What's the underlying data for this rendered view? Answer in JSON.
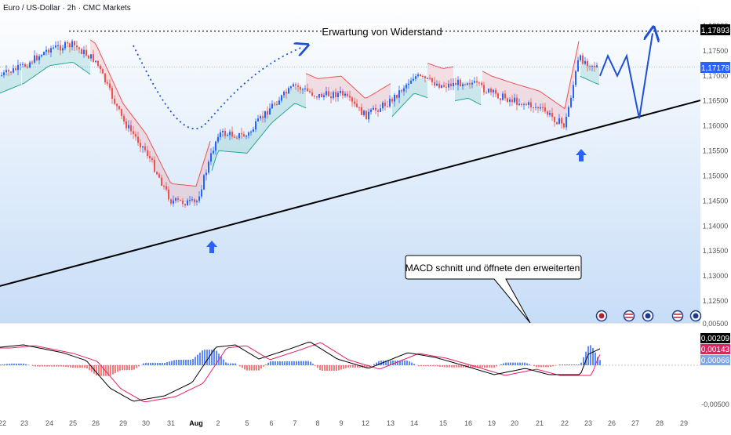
{
  "header": {
    "symbol_title": "Euro / US-Dollar · 2h · CMC Markets"
  },
  "annotations": {
    "resistance_label": "Erwartung von Widerstand",
    "macd_callout": "MACD schnitt und öffnete den erweiterten"
  },
  "colors": {
    "bull": "#2962ff",
    "bear": "#ef5350",
    "supertrend_up": "#26a69a",
    "supertrend_down": "#ef5350",
    "trendline": "#000000",
    "forecast": "#1e4fd8",
    "price_badge": "#2962ff",
    "background_top": "#ffffff",
    "background_bottom": "#c7ddf7"
  },
  "chart_data": [
    {
      "type": "candlestick",
      "title": "Euro / US-Dollar · 2h · CMC Markets",
      "price_axis": {
        "ticks": [
          "1,18000",
          "1,17500",
          "1,17000",
          "1,16500",
          "1,16000",
          "1,15500",
          "1,15000",
          "1,14500",
          "1,14000",
          "1,13500",
          "1,13000",
          "1,12500"
        ],
        "range": [
          1.121,
          1.1805
        ]
      },
      "time_axis": {
        "ticks": [
          "22",
          "23",
          "24",
          "25",
          "26",
          "29",
          "30",
          "31",
          "Aug",
          "2",
          "5",
          "6",
          "7",
          "8",
          "9",
          "12",
          "13",
          "14",
          "15",
          "16",
          "19",
          "20",
          "21",
          "22",
          "23",
          "26",
          "27",
          "28",
          "29"
        ]
      },
      "last_price": 1.17178,
      "resistance_level": 1.17893,
      "price_labels": [
        "1,17893",
        "1,17178"
      ],
      "key_points": [
        {
          "time": "23",
          "price": 1.172
        },
        {
          "time": "24",
          "price": 1.1755
        },
        {
          "time": "25",
          "price": 1.1762
        },
        {
          "time": "26",
          "price": 1.173
        },
        {
          "time": "29",
          "price": 1.161
        },
        {
          "time": "30",
          "price": 1.155
        },
        {
          "time": "31",
          "price": 1.145
        },
        {
          "time": "Aug",
          "price": 1.1445
        },
        {
          "time": "2",
          "price": 1.1585
        },
        {
          "time": "5",
          "price": 1.158
        },
        {
          "time": "6",
          "price": 1.164
        },
        {
          "time": "7",
          "price": 1.168
        },
        {
          "time": "8",
          "price": 1.166
        },
        {
          "time": "9",
          "price": 1.1665
        },
        {
          "time": "12",
          "price": 1.162
        },
        {
          "time": "13",
          "price": 1.165
        },
        {
          "time": "14",
          "price": 1.17
        },
        {
          "time": "15",
          "price": 1.168
        },
        {
          "time": "16",
          "price": 1.169
        },
        {
          "time": "19",
          "price": 1.1665
        },
        {
          "time": "20",
          "price": 1.165
        },
        {
          "time": "21",
          "price": 1.1635
        },
        {
          "time": "22",
          "price": 1.16
        },
        {
          "time": "23",
          "price": 1.1735
        },
        {
          "time": "23",
          "price": 1.1718
        }
      ],
      "trendline": {
        "from": {
          "price": 1.128,
          "at": "left edge"
        },
        "to": {
          "price": 1.1651,
          "at": "right edge"
        }
      },
      "forecast_path_prices": [
        1.17,
        1.174,
        1.17,
        1.174,
        1.1615,
        1.1785
      ],
      "buy_signals": [
        {
          "time": "Aug"
        },
        {
          "time": "23"
        }
      ]
    },
    {
      "type": "bar+line",
      "title": "MACD",
      "value_axis": {
        "ticks": [
          "0,00500",
          "-0,00500"
        ]
      },
      "value_labels": [
        "0,00209",
        "0,00143",
        "0,00066"
      ],
      "histogram_last": 0.00066,
      "macd_last": 0.00209,
      "signal_last": 0.00143,
      "zero_line": true
    }
  ]
}
